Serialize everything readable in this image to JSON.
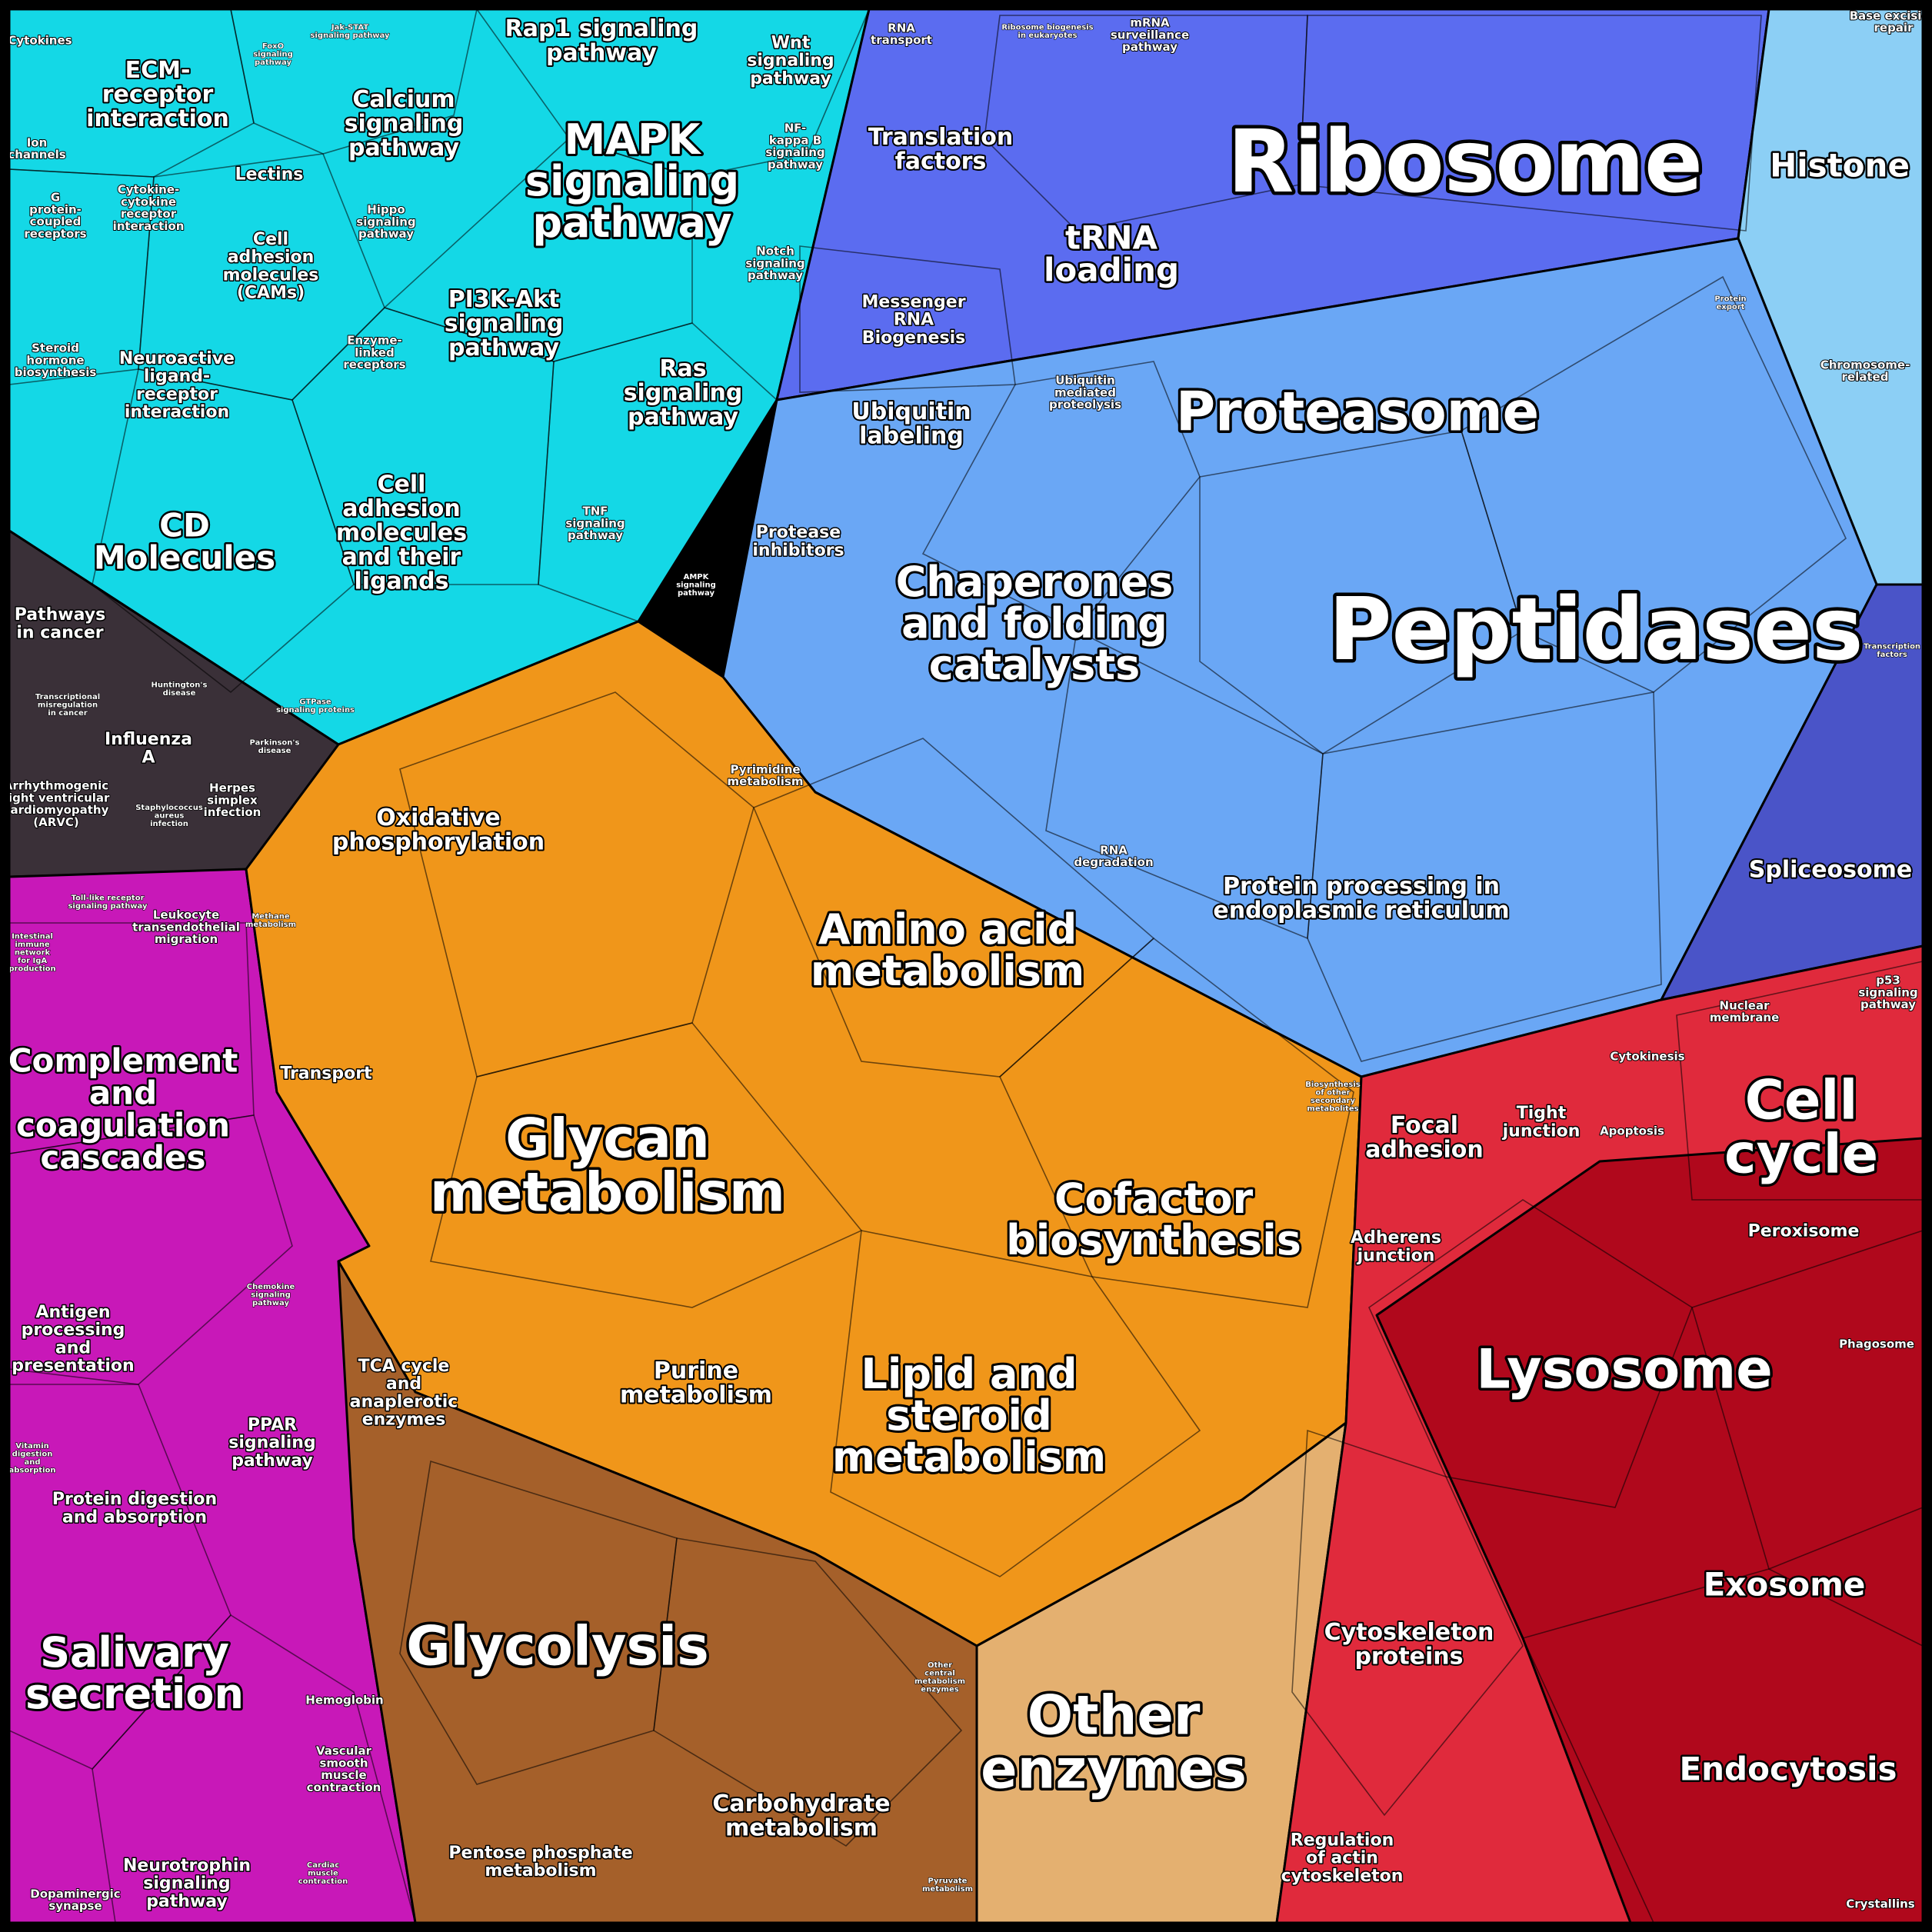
{
  "title": "",
  "palette": {
    "cyan": "#14d8e6",
    "blue": "#5b6cf0",
    "lightblue": "#6aa7f5",
    "orange": "#f0961a",
    "brown": "#a5602a",
    "magenta": "#c818b8",
    "red": "#e02a3c",
    "darkred": "#b0081c",
    "dark": "#3a3038"
  },
  "regions": [
    {
      "id": "cytokines",
      "text": "Cytokines"
    },
    {
      "id": "ecm",
      "text": "ECM-\nreceptor\ninteraction"
    },
    {
      "id": "foxo",
      "text": "FoxO\nsignaling\npathway"
    },
    {
      "id": "jakstat",
      "text": "Jak-STAT\nsignaling pathway"
    },
    {
      "id": "rap1",
      "text": "Rap1 signaling\npathway"
    },
    {
      "id": "wnt",
      "text": "Wnt\nsignaling\npathway"
    },
    {
      "id": "ion",
      "text": "Ion\nchannels"
    },
    {
      "id": "cytcyt",
      "text": "Cytokine-\ncytokine\nreceptor\ninteraction"
    },
    {
      "id": "lectins",
      "text": "Lectins"
    },
    {
      "id": "calcium",
      "text": "Calcium\nsignaling\npathway"
    },
    {
      "id": "mapk",
      "text": "MAPK\nsignaling\npathway"
    },
    {
      "id": "nfkb",
      "text": "NF-\nkappa B\nsignaling\npathway"
    },
    {
      "id": "gpcr",
      "text": "G\nprotein-\ncoupled\nreceptors"
    },
    {
      "id": "hippo",
      "text": "Hippo\nsignaling\npathway"
    },
    {
      "id": "cams",
      "text": "Cell\nadhesion\nmolecules\n(CAMs)"
    },
    {
      "id": "notch",
      "text": "Notch\nsignaling\npathway"
    },
    {
      "id": "pi3k",
      "text": "PI3K-Akt\nsignaling\npathway"
    },
    {
      "id": "steroidhorm",
      "text": "Steroid\nhormone\nbiosynthesis"
    },
    {
      "id": "enzlinked",
      "text": "Enzyme-\nlinked\nreceptors"
    },
    {
      "id": "neuro",
      "text": "Neuroactive\nligand-\nreceptor\ninteraction"
    },
    {
      "id": "ras",
      "text": "Ras\nsignaling\npathway"
    },
    {
      "id": "cd",
      "text": "CD\nMolecules"
    },
    {
      "id": "celladh",
      "text": "Cell\nadhesion\nmolecules\nand their\nligands"
    },
    {
      "id": "tnf",
      "text": "TNF\nsignaling\npathway"
    },
    {
      "id": "ampk",
      "text": "AMPK\nsignaling\npathway"
    },
    {
      "id": "gtpase",
      "text": "GTPase\nsignaling proteins"
    },
    {
      "id": "cancer",
      "text": "Pathways\nin cancer"
    },
    {
      "id": "transcmis",
      "text": "Transcriptional\nmisregulation\nin cancer"
    },
    {
      "id": "huntington",
      "text": "Huntington's\ndisease"
    },
    {
      "id": "influenza",
      "text": "Influenza\nA"
    },
    {
      "id": "parkinson",
      "text": "Parkinson's\ndisease"
    },
    {
      "id": "arvc",
      "text": "Arrhythmogenic\nright ventricular\ncardiomyopathy\n(ARVC)"
    },
    {
      "id": "staph",
      "text": "Staphylococcus\naureus\ninfection"
    },
    {
      "id": "herpes",
      "text": "Herpes\nsimplex\ninfection"
    },
    {
      "id": "rnatransport",
      "text": "RNA\ntransport"
    },
    {
      "id": "ribobio",
      "text": "Ribosome biogenesis\nin eukaryotes"
    },
    {
      "id": "mrnasurv",
      "text": "mRNA\nsurveillance\npathway"
    },
    {
      "id": "ribosome",
      "text": "Ribosome"
    },
    {
      "id": "ber",
      "text": "Base excision\nrepair"
    },
    {
      "id": "histone",
      "text": "Histone"
    },
    {
      "id": "translation",
      "text": "Translation\nfactors"
    },
    {
      "id": "trna",
      "text": "tRNA\nloading"
    },
    {
      "id": "mrnabio",
      "text": "Messenger\nRNA\nBiogenesis"
    },
    {
      "id": "protexport",
      "text": "Protein\nexport"
    },
    {
      "id": "chromosome",
      "text": "Chromosome-\nrelated"
    },
    {
      "id": "ubilabel",
      "text": "Ubiquitin\nlabeling"
    },
    {
      "id": "ubiprot",
      "text": "Ubiquitin\nmediated\nproteolysis"
    },
    {
      "id": "proteasome",
      "text": "Proteasome"
    },
    {
      "id": "protinh",
      "text": "Protease\ninhibitors"
    },
    {
      "id": "chaperones",
      "text": "Chaperones\nand folding\ncatalysts"
    },
    {
      "id": "peptidases",
      "text": "Peptidases"
    },
    {
      "id": "transcfac",
      "text": "Transcription\nfactors"
    },
    {
      "id": "rnadeg",
      "text": "RNA\ndegradation"
    },
    {
      "id": "er",
      "text": "Protein processing in\nendoplasmic reticulum"
    },
    {
      "id": "spliceosome",
      "text": "Spliceosome"
    },
    {
      "id": "tollreceptor",
      "text": "Toll-like receptor\nsignaling pathway"
    },
    {
      "id": "intestinal",
      "text": "Intestinal\nimmune\nnetwork\nfor IgA\nproduction"
    },
    {
      "id": "leukocyte",
      "text": "Leukocyte\ntransendothelial\nmigration"
    },
    {
      "id": "complement",
      "text": "Complement\nand\ncoagulation\ncascades"
    },
    {
      "id": "chemokine",
      "text": "Chemokine\nsignaling\npathway"
    },
    {
      "id": "antigen",
      "text": "Antigen\nprocessing\nand\npresentation"
    },
    {
      "id": "ppar",
      "text": "PPAR\nsignaling\npathway"
    },
    {
      "id": "vitamin",
      "text": "Vitamin\ndigestion\nand\nabsorption"
    },
    {
      "id": "protdig",
      "text": "Protein digestion\nand absorption"
    },
    {
      "id": "salivary",
      "text": "Salivary\nsecretion"
    },
    {
      "id": "hemoglobin",
      "text": "Hemoglobin"
    },
    {
      "id": "vascular",
      "text": "Vascular\nsmooth\nmuscle\ncontraction"
    },
    {
      "id": "cardiac",
      "text": "Cardiac\nmuscle\ncontraction"
    },
    {
      "id": "neurotrophin",
      "text": "Neurotrophin\nsignaling\npathway"
    },
    {
      "id": "dopamine",
      "text": "Dopaminergic\nsynapse"
    },
    {
      "id": "pyrimidine",
      "text": "Pyrimidine\nmetabolism"
    },
    {
      "id": "oxphos",
      "text": "Oxidative\nphosphorylation"
    },
    {
      "id": "methane",
      "text": "Methane\nmetabolism"
    },
    {
      "id": "transport",
      "text": "Transport"
    },
    {
      "id": "aminoacid",
      "text": "Amino acid\nmetabolism"
    },
    {
      "id": "glycan",
      "text": "Glycan\nmetabolism"
    },
    {
      "id": "biosecond",
      "text": "Biosynthesis\nof other\nsecondary\nmetabolites"
    },
    {
      "id": "cofactor",
      "text": "Cofactor\nbiosynthesis"
    },
    {
      "id": "purine",
      "text": "Purine\nmetabolism"
    },
    {
      "id": "tca",
      "text": "TCA cycle\nand\nanaplerotic\nenzymes"
    },
    {
      "id": "lipid",
      "text": "Lipid and\nsteroid\nmetabolism"
    },
    {
      "id": "glycolysis",
      "text": "Glycolysis"
    },
    {
      "id": "othercentral",
      "text": "Other\ncentral\nmetabolism\nenzymes"
    },
    {
      "id": "otherenz",
      "text": "Other\nenzymes"
    },
    {
      "id": "carbo",
      "text": "Carbohydrate\nmetabolism"
    },
    {
      "id": "pyruvate",
      "text": "Pyruvate\nmetabolism"
    },
    {
      "id": "pentose",
      "text": "Pentose phosphate\nmetabolism"
    },
    {
      "id": "nuclearmem",
      "text": "Nuclear\nmembrane"
    },
    {
      "id": "p53",
      "text": "p53\nsignaling\npathway"
    },
    {
      "id": "cytokinesis",
      "text": "Cytokinesis"
    },
    {
      "id": "focal",
      "text": "Focal\nadhesion"
    },
    {
      "id": "tight",
      "text": "Tight\njunction"
    },
    {
      "id": "apoptosis",
      "text": "Apoptosis"
    },
    {
      "id": "cellcycle",
      "text": "Cell\ncycle"
    },
    {
      "id": "peroxisome",
      "text": "Peroxisome"
    },
    {
      "id": "adherens",
      "text": "Adherens\njunction"
    },
    {
      "id": "phagosome",
      "text": "Phagosome"
    },
    {
      "id": "lysosome",
      "text": "Lysosome"
    },
    {
      "id": "exosome",
      "text": "Exosome"
    },
    {
      "id": "cytoskel",
      "text": "Cytoskeleton\nproteins"
    },
    {
      "id": "endocytosis",
      "text": "Endocytosis"
    },
    {
      "id": "regactin",
      "text": "Regulation\nof actin\ncytoskeleton"
    },
    {
      "id": "crystallins",
      "text": "Crystallins"
    }
  ]
}
